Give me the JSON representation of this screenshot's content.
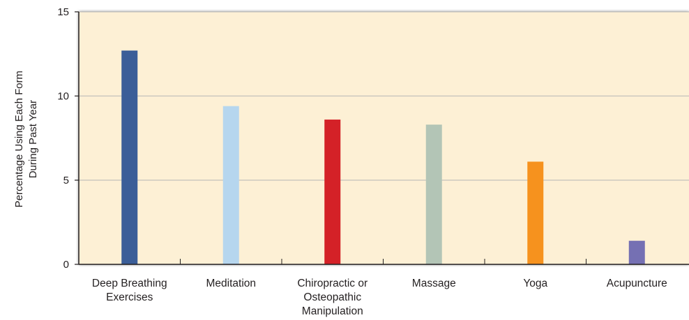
{
  "chart_data": {
    "type": "bar",
    "categories": [
      [
        "Deep Breathing",
        "Exercises"
      ],
      [
        "Meditation"
      ],
      [
        "Chiropractic or",
        "Osteopathic",
        "Manipulation"
      ],
      [
        "Massage"
      ],
      [
        "Yoga"
      ],
      [
        "Acupuncture"
      ]
    ],
    "values": [
      12.7,
      9.4,
      8.6,
      8.3,
      6.1,
      1.4
    ],
    "bar_colors": [
      "#3b5e98",
      "#b6d6ee",
      "#d42127",
      "#b3c5b6",
      "#f6921e",
      "#7570b3"
    ],
    "ylabel": [
      "Percentage Using Each Form",
      "During Past Year"
    ],
    "ylim": [
      0,
      15
    ],
    "yticks": [
      "0",
      "5",
      "10",
      "15"
    ],
    "grid": true,
    "plot_background": "#fdf0d5",
    "grid_color": "#b5b5b5"
  }
}
